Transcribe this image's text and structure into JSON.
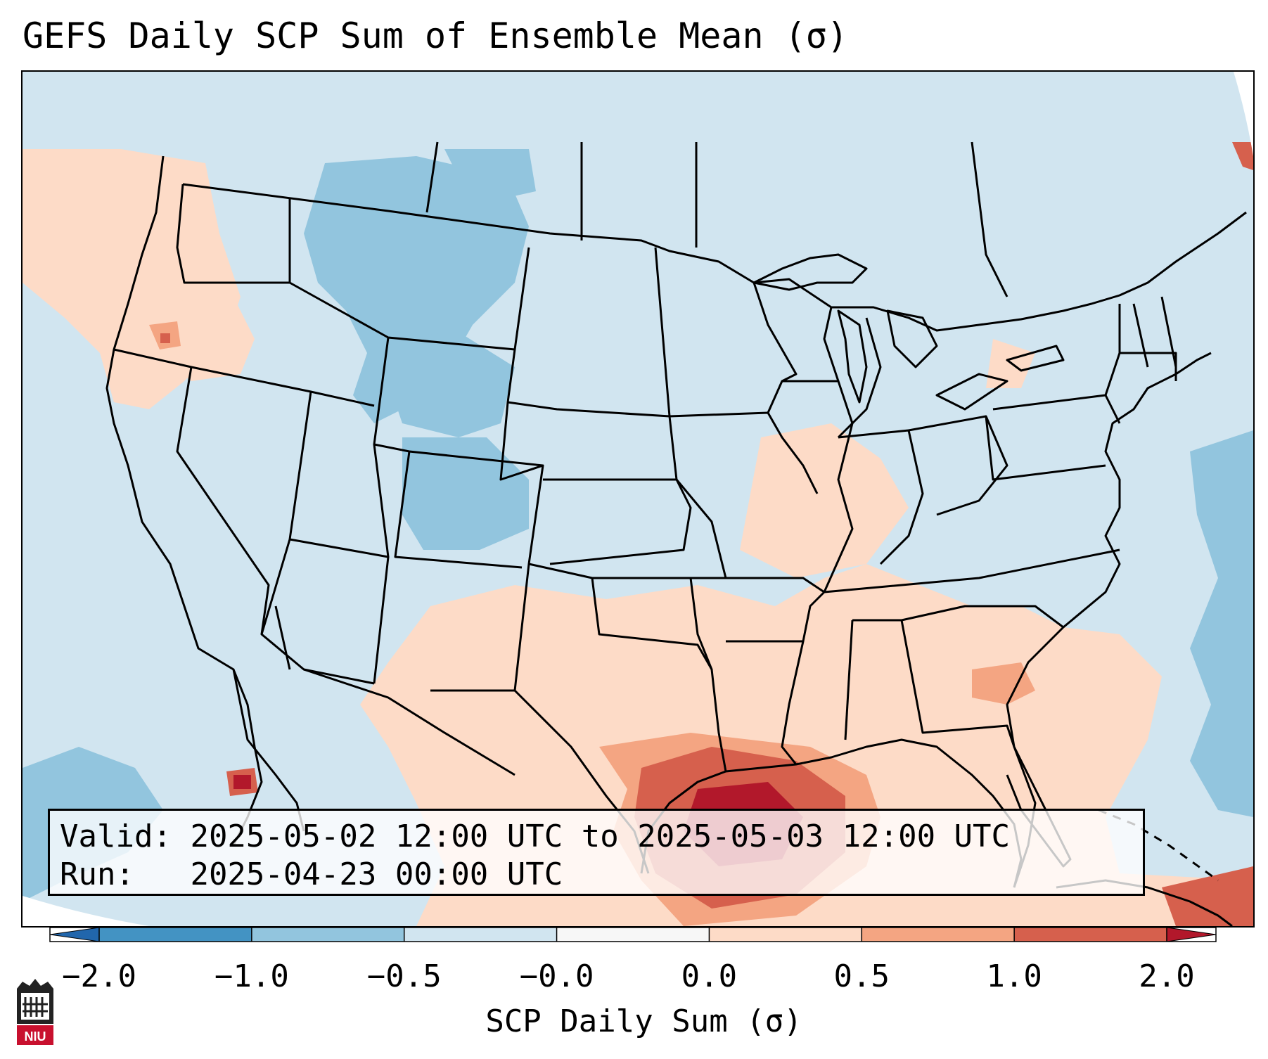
{
  "title": "GEFS Daily SCP Sum of Ensemble Mean (σ)",
  "info": {
    "valid_label": "Valid:",
    "valid_value": "2025-05-02 12:00 UTC to 2025-05-03 12:00 UTC",
    "run_label": "Run:",
    "run_value": "2025-04-23 00:00 UTC"
  },
  "colorbar": {
    "label": "SCP Daily Sum (σ)",
    "ticks": [
      "−2.0",
      "−1.0",
      "−0.5",
      "−0.0",
      "0.0",
      "0.5",
      "1.0",
      "2.0"
    ],
    "colors": [
      "#2166ac",
      "#4393c3",
      "#92c5de",
      "#d1e5f0",
      "#f7f7f7",
      "#fddbc7",
      "#f4a582",
      "#d6604d",
      "#b2182b"
    ]
  },
  "map": {
    "region": "Contiguous United States",
    "palette": {
      "minus1": "#92c5de",
      "minus05": "#d1e5f0",
      "plus05": "#fddbc7",
      "plus1": "#f4a582",
      "plus15": "#d6604d",
      "plus2": "#b2182b"
    }
  },
  "logo": {
    "name": "NIU"
  }
}
